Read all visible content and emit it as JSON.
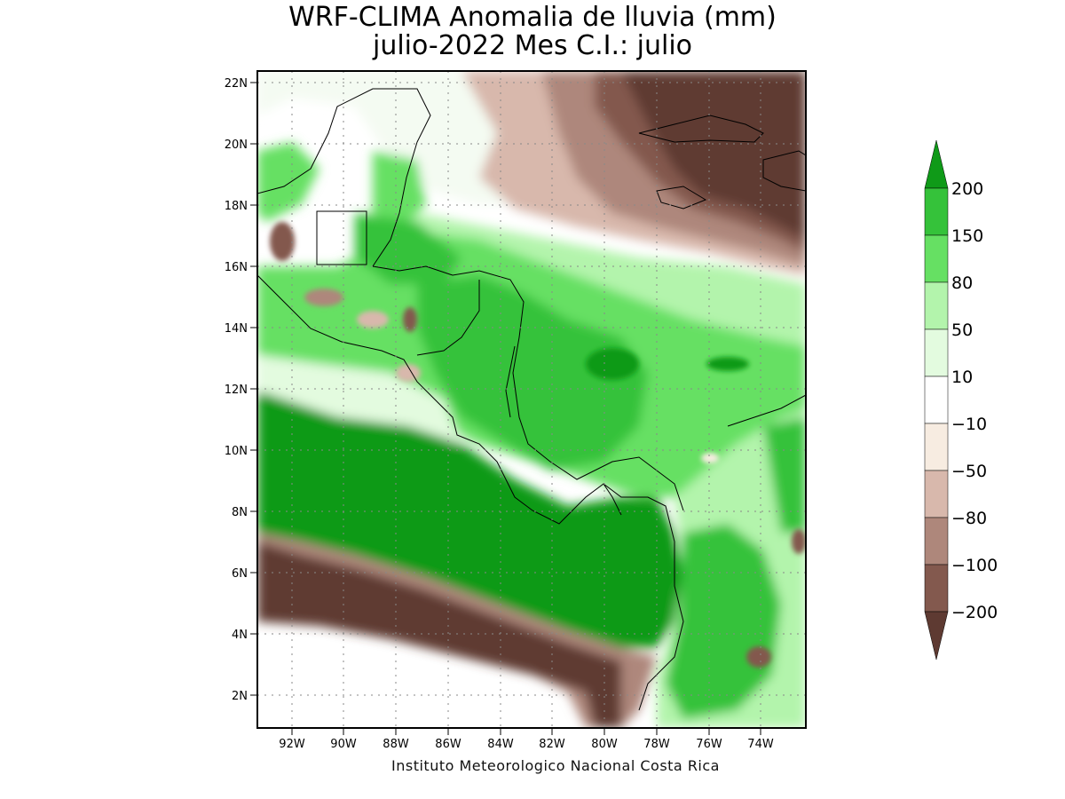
{
  "title": {
    "line1": "WRF-CLIMA Anomalia de lluvia (mm)",
    "line2": "julio-2022 Mes C.I.: julio"
  },
  "credit": "Instituto Meteorologico Nacional Costa Rica",
  "map": {
    "variable": "Anomalia de lluvia",
    "units": "mm",
    "lon_range": [
      -93.0,
      -72.5
    ],
    "lat_range": [
      1.0,
      22.5
    ],
    "lon_ticks": [
      "92W",
      "90W",
      "88W",
      "86W",
      "84W",
      "82W",
      "80W",
      "78W",
      "76W",
      "74W"
    ],
    "lat_ticks": [
      "2N",
      "4N",
      "6N",
      "8N",
      "10N",
      "12N",
      "14N",
      "16N",
      "18N",
      "20N",
      "22N"
    ],
    "grid": "dotted",
    "ocean_background": "#ffffff"
  },
  "legend": {
    "levels": [
      "200",
      "150",
      "80",
      "50",
      "10",
      "−10",
      "−50",
      "−80",
      "−100",
      "−200"
    ],
    "colors": [
      "#0f9a18",
      "#35c23a",
      "#66e063",
      "#b3f4ac",
      "#e3fbdf",
      "#ffffff",
      "#f7ece1",
      "#d8b8ac",
      "#ae877b",
      "#83594e",
      "#5e3a32"
    ],
    "top_arrow_color": "#0f9a18",
    "bottom_arrow_color": "#5e3a32"
  }
}
